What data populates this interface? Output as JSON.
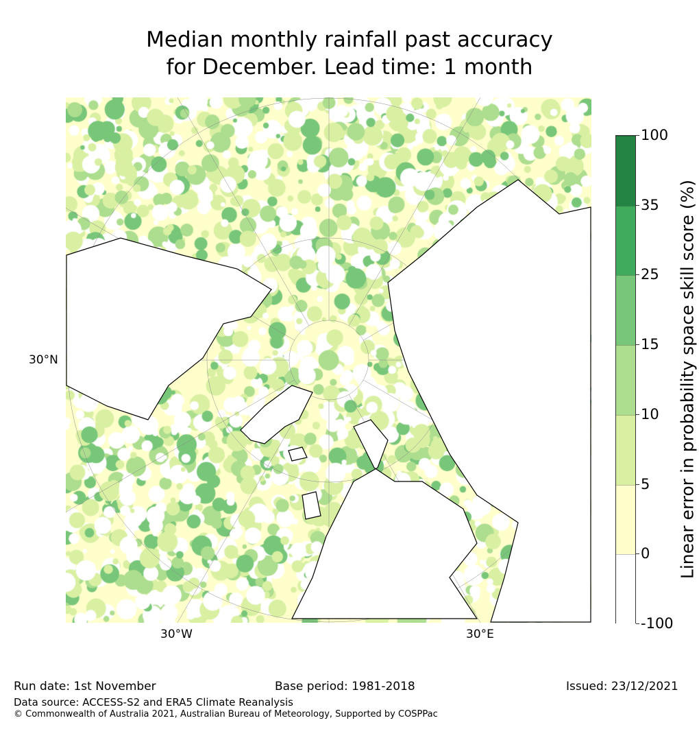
{
  "title": {
    "line1": "Median monthly rainfall past accuracy",
    "line2": "for December. Lead time: 1 month"
  },
  "map": {
    "labels": {
      "lat_30n": "30°N",
      "lon_30w": "30°W",
      "lon_30e": "30°E"
    }
  },
  "colorbar": {
    "label": "Linear error in probability space skill score (%)",
    "ticks": [
      "-100",
      "0",
      "5",
      "10",
      "15",
      "25",
      "35",
      "100"
    ],
    "colors": [
      "#ffffff",
      "#ffffcc",
      "#d9f0a3",
      "#addd8e",
      "#78c679",
      "#41ab5d",
      "#238443"
    ]
  },
  "footer": {
    "run_date": "Run date: 1st November",
    "base_period": "Base period: 1981-2018",
    "issued": "Issued: 23/12/2021",
    "data_source": "Data source: ACCESS-S2 and ERA5 Climate Reanalysis",
    "copyright": "© Commonwealth of Australia 2021, Australian Bureau of Meteorology, Supported by COSPPac"
  }
}
